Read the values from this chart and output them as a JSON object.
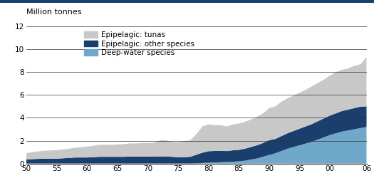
{
  "years": [
    50,
    51,
    52,
    53,
    54,
    55,
    56,
    57,
    58,
    59,
    60,
    61,
    62,
    63,
    64,
    65,
    66,
    67,
    68,
    69,
    70,
    71,
    72,
    73,
    74,
    75,
    76,
    77,
    78,
    79,
    80,
    81,
    82,
    83,
    84,
    85,
    86,
    87,
    88,
    89,
    90,
    91,
    92,
    93,
    94,
    95,
    96,
    97,
    98,
    99,
    100,
    101,
    102,
    103,
    104,
    105,
    106
  ],
  "deep_water": [
    0.01,
    0.01,
    0.01,
    0.01,
    0.01,
    0.01,
    0.01,
    0.01,
    0.01,
    0.01,
    0.01,
    0.01,
    0.01,
    0.01,
    0.01,
    0.01,
    0.01,
    0.01,
    0.01,
    0.01,
    0.01,
    0.01,
    0.01,
    0.01,
    0.01,
    0.01,
    0.01,
    0.01,
    0.02,
    0.05,
    0.08,
    0.1,
    0.12,
    0.14,
    0.16,
    0.2,
    0.25,
    0.35,
    0.45,
    0.6,
    0.75,
    0.9,
    1.1,
    1.3,
    1.45,
    1.6,
    1.75,
    1.9,
    2.1,
    2.3,
    2.5,
    2.65,
    2.8,
    2.9,
    3.0,
    3.1,
    3.2
  ],
  "epipelagic_other": [
    0.35,
    0.38,
    0.4,
    0.42,
    0.42,
    0.42,
    0.45,
    0.48,
    0.52,
    0.52,
    0.52,
    0.55,
    0.58,
    0.58,
    0.58,
    0.58,
    0.58,
    0.6,
    0.6,
    0.6,
    0.6,
    0.6,
    0.62,
    0.62,
    0.58,
    0.55,
    0.55,
    0.58,
    0.75,
    0.9,
    1.0,
    1.0,
    1.0,
    0.95,
    1.0,
    1.0,
    1.05,
    1.1,
    1.15,
    1.2,
    1.3,
    1.25,
    1.3,
    1.35,
    1.4,
    1.45,
    1.5,
    1.55,
    1.6,
    1.65,
    1.7,
    1.75,
    1.8,
    1.82,
    1.85,
    1.88,
    1.8
  ],
  "epipelagic_tunas": [
    0.55,
    0.6,
    0.65,
    0.7,
    0.72,
    0.75,
    0.78,
    0.8,
    0.85,
    0.9,
    0.95,
    1.0,
    1.05,
    1.05,
    1.05,
    1.08,
    1.1,
    1.15,
    1.15,
    1.18,
    1.2,
    1.2,
    1.4,
    1.4,
    1.3,
    1.3,
    1.4,
    1.45,
    1.8,
    2.3,
    2.35,
    2.25,
    2.25,
    2.15,
    2.25,
    2.3,
    2.35,
    2.4,
    2.5,
    2.6,
    2.8,
    2.85,
    3.0,
    3.05,
    3.1,
    3.15,
    3.2,
    3.3,
    3.35,
    3.4,
    3.5,
    3.6,
    3.6,
    3.6,
    3.7,
    3.7,
    4.3
  ],
  "color_tunas": "#c8c8c8",
  "color_other": "#1a3f6f",
  "color_deep": "#6fa8c8",
  "header_color": "#1a3f6f",
  "ylabel": "Million tonnes",
  "yticks": [
    0,
    2,
    4,
    6,
    8,
    10,
    12
  ],
  "ylim": [
    0,
    12
  ],
  "xtick_labels": [
    "50",
    "55",
    "60",
    "65",
    "70",
    "75",
    "80",
    "85",
    "90",
    "95",
    "00",
    "06"
  ],
  "xtick_positions": [
    50,
    55,
    60,
    65,
    70,
    75,
    80,
    85,
    90,
    95,
    100,
    106
  ],
  "legend_labels": [
    "Epipelagic: tunas",
    "Epipelagic: other species",
    "Deep-water species"
  ]
}
